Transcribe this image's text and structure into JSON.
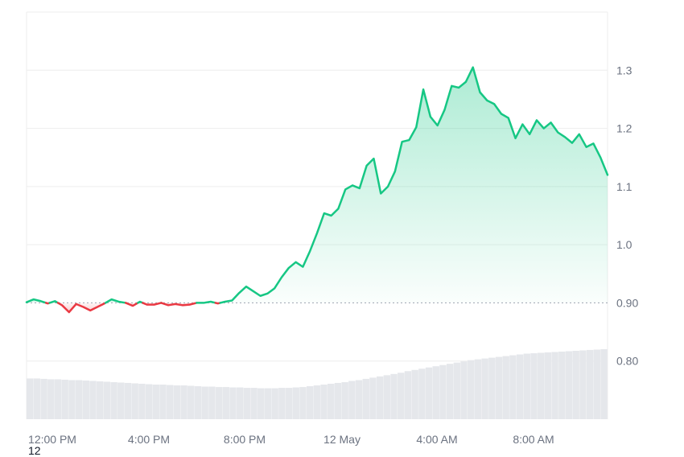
{
  "corner_label": "12",
  "chart_data": {
    "type": "area",
    "title": "",
    "xlabel": "",
    "ylabel": "",
    "ylim": [
      0.7,
      1.4
    ],
    "baseline": 0.9,
    "baseline_label": "0.90",
    "grid": true,
    "x_ticks": [
      "12:00 PM",
      "4:00 PM",
      "8:00 PM",
      "12 May",
      "4:00 AM",
      "8:00 AM"
    ],
    "y_ticks": [
      {
        "value": 1.3,
        "label": "1.3"
      },
      {
        "value": 1.2,
        "label": "1.2"
      },
      {
        "value": 1.1,
        "label": "1.1"
      },
      {
        "value": 1.0,
        "label": "1.0"
      },
      {
        "value": 0.9,
        "label": "0.90"
      },
      {
        "value": 0.8,
        "label": "0.80"
      }
    ],
    "colors": {
      "up": "#16c784",
      "down": "#ea3943",
      "grid": "#eeeeee",
      "volume": "#e5e7eb",
      "baseline": "#9ca3af"
    },
    "series": [
      {
        "values": [
          0.901,
          0.906,
          0.903,
          0.899,
          0.903,
          0.896,
          0.884,
          0.898,
          0.893,
          0.887,
          0.893,
          0.899,
          0.906,
          0.902,
          0.9,
          0.895,
          0.902,
          0.897,
          0.897,
          0.9,
          0.896,
          0.898,
          0.896,
          0.897,
          0.9,
          0.9,
          0.902,
          0.899,
          0.902,
          0.904,
          0.917,
          0.928,
          0.92,
          0.912,
          0.916,
          0.925,
          0.944,
          0.96,
          0.97,
          0.962,
          0.989,
          1.02,
          1.054,
          1.05,
          1.062,
          1.095,
          1.102,
          1.097,
          1.136,
          1.148,
          1.088,
          1.1,
          1.126,
          1.177,
          1.18,
          1.202,
          1.267,
          1.22,
          1.205,
          1.232,
          1.273,
          1.27,
          1.28,
          1.305,
          1.262,
          1.248,
          1.242,
          1.225,
          1.218,
          1.183,
          1.207,
          1.19,
          1.214,
          1.2,
          1.21,
          1.193,
          1.185,
          1.175,
          1.19,
          1.168,
          1.174,
          1.15,
          1.12
        ]
      }
    ],
    "volume": [
      0.1,
      0.1,
      0.099,
      0.098,
      0.098,
      0.097,
      0.096,
      0.096,
      0.095,
      0.094,
      0.093,
      0.092,
      0.091,
      0.09,
      0.089,
      0.088,
      0.087,
      0.086,
      0.085,
      0.085,
      0.084,
      0.083,
      0.083,
      0.082,
      0.081,
      0.08,
      0.08,
      0.079,
      0.079,
      0.078,
      0.078,
      0.077,
      0.077,
      0.076,
      0.076,
      0.076,
      0.077,
      0.077,
      0.078,
      0.079,
      0.081,
      0.083,
      0.085,
      0.087,
      0.089,
      0.091,
      0.094,
      0.096,
      0.099,
      0.102,
      0.105,
      0.108,
      0.111,
      0.114,
      0.118,
      0.121,
      0.124,
      0.127,
      0.13,
      0.133,
      0.136,
      0.139,
      0.142,
      0.145,
      0.147,
      0.149,
      0.151,
      0.153,
      0.155,
      0.157,
      0.159,
      0.161,
      0.162,
      0.163,
      0.164,
      0.165,
      0.166,
      0.167,
      0.168,
      0.169,
      0.17,
      0.171,
      0.172
    ]
  }
}
